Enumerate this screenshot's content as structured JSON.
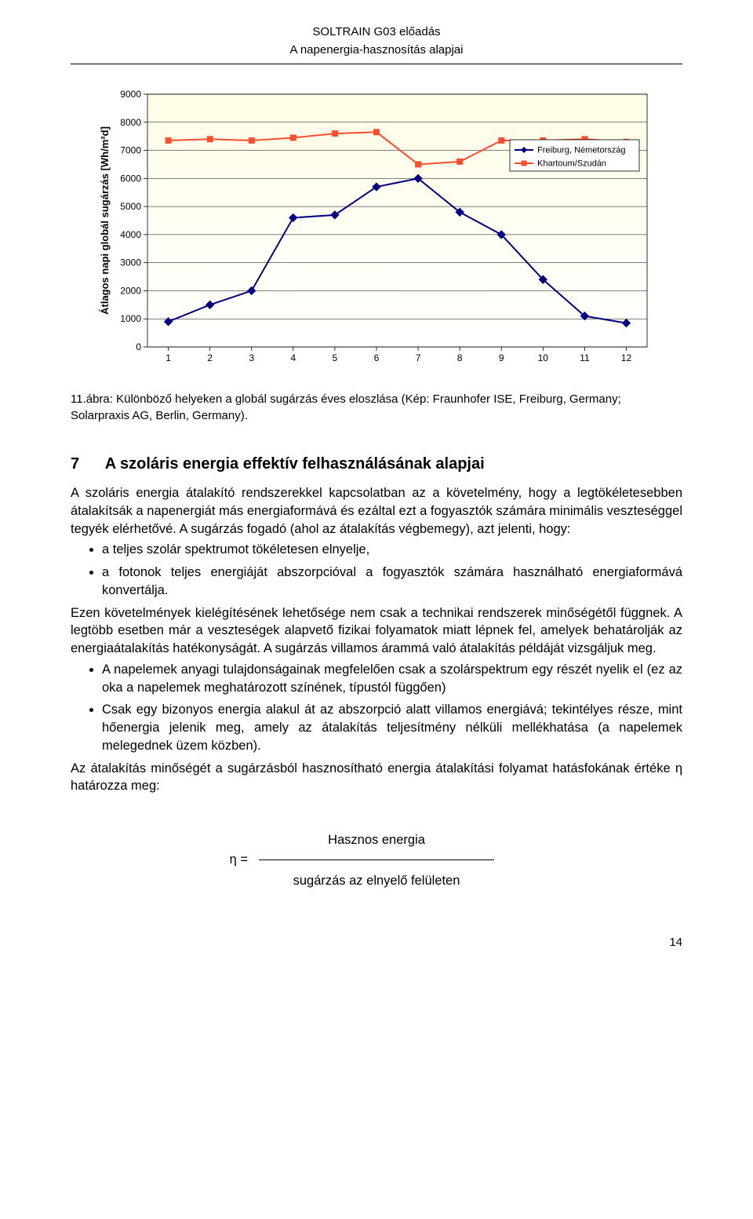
{
  "header": {
    "line1": "SOLTRAIN G03 előadás",
    "line2": "A napenergia-hasznosítás alapjai"
  },
  "chart": {
    "type": "line",
    "y_label": "Átlagos napi globál sugárzás [Wh/m²d]",
    "y_label_fontsize": 13,
    "x_ticks": [
      1,
      2,
      3,
      4,
      5,
      6,
      7,
      8,
      9,
      10,
      11,
      12
    ],
    "x_tick_fontsize": 12,
    "y_ticks": [
      0,
      1000,
      2000,
      3000,
      4000,
      5000,
      6000,
      7000,
      8000,
      9000
    ],
    "y_tick_fontsize": 12,
    "ylim": [
      0,
      9000
    ],
    "xlim": [
      0.5,
      12.5
    ],
    "background_top": "#fffde6",
    "background_bottom": "#ffffff",
    "grid_color": "#000000",
    "grid_width": 0.5,
    "legend": {
      "position": "right-inside",
      "bg": "#ffffff",
      "border": "#000000",
      "fontsize": 11
    },
    "series": [
      {
        "name": "Freiburg, Németország",
        "color": "#000080",
        "marker": "diamond",
        "marker_size": 8,
        "line_width": 2,
        "data": [
          900,
          1500,
          2000,
          4600,
          4700,
          5700,
          6000,
          4800,
          4000,
          2400,
          1100,
          850
        ]
      },
      {
        "name": "Khartoum/Szudán",
        "color": "#ff4d2e",
        "marker": "square",
        "marker_size": 7,
        "line_width": 2,
        "data": [
          7350,
          7400,
          7350,
          7450,
          7600,
          7650,
          6500,
          6600,
          7350,
          7350,
          7400,
          7300
        ]
      }
    ]
  },
  "caption": "11.ábra: Különböző helyeken a globál sugárzás éves eloszlása (Kép: Fraunhofer ISE, Freiburg, Germany; Solarpraxis AG, Berlin, Germany).",
  "section": {
    "number": "7",
    "title": "A szoláris energia effektív felhasználásának alapjai"
  },
  "paragraphs": {
    "p1": "A szoláris energia átalakító rendszerekkel kapcsolatban az a követelmény, hogy a legtökéletesebben átalakítsák a napenergiát más energiaformává és ezáltal ezt a fogyasztók számára minimális veszteséggel tegyék elérhetővé. A sugárzás fogadó (ahol az átalakítás végbemegy), azt jelenti, hogy:",
    "bul1a": "a teljes szolár spektrumot tökéletesen elnyelje,",
    "bul1b": "a fotonok teljes energiáját abszorpcióval a fogyasztók számára használható energiaformává konvertálja.",
    "p2": "Ezen követelmények kielégítésének lehetősége nem csak a technikai rendszerek minőségétől függnek. A legtöbb esetben már a veszteségek alapvető fizikai folyamatok miatt lépnek fel, amelyek behatárolják az energiaátalakítás hatékonyságát. A sugárzás villamos árammá való átalakítás példáját vizsgáljuk meg.",
    "bul2a": "A napelemek anyagi tulajdonságainak megfelelően csak a szolárspektrum egy részét nyelik el (ez az oka a napelemek meghatározott színének, típustól függően)",
    "bul2b": "Csak egy bizonyos energia alakul át az abszorpció alatt villamos energiává; tekintélyes része, mint hőenergia jelenik meg, amely az átalakítás teljesítmény nélküli mellékhatása (a napelemek melegednek üzem közben).",
    "p3": "Az átalakítás minőségét a sugárzásból hasznosítható energia átalakítási folyamat hatásfokának értéke  η határozza meg:"
  },
  "formula": {
    "top": "Hasznos energia",
    "eta": "η  =",
    "bottom": "sugárzás az elnyelő felületen"
  },
  "pagenum": "14"
}
